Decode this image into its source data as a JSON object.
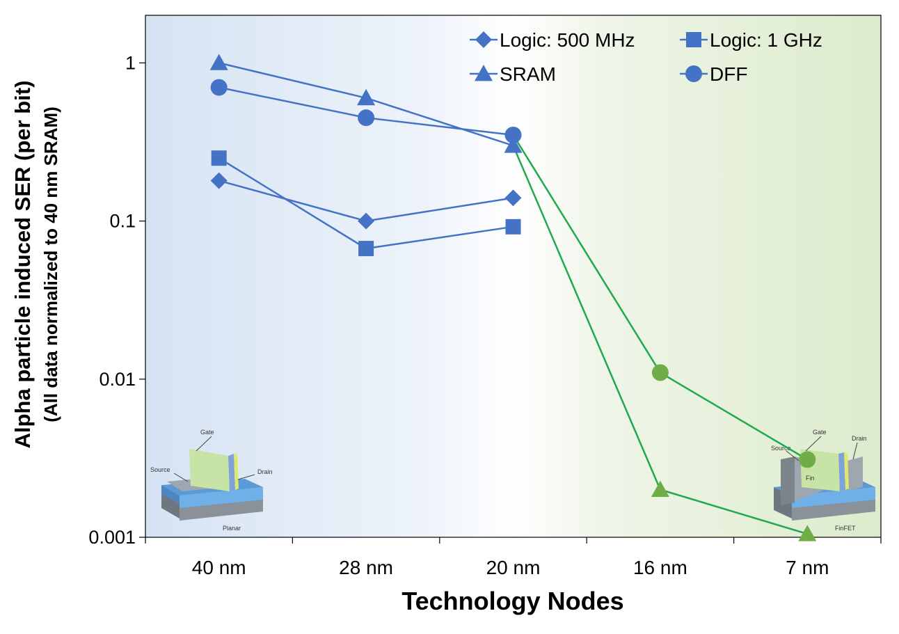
{
  "chart_data": {
    "type": "line",
    "title": "",
    "xlabel": "Technology Nodes",
    "ylabel": "Alpha particle induced SER (per bit)",
    "ylabel_sub": "(All data normalized to 40 nm SRAM)",
    "y_scale": "log",
    "ylim": [
      0.001,
      2
    ],
    "y_ticks": [
      {
        "value": 1,
        "label": "1"
      },
      {
        "value": 0.1,
        "label": "0.1"
      },
      {
        "value": 0.01,
        "label": "0.01"
      },
      {
        "value": 0.001,
        "label": "0.001"
      }
    ],
    "categories": [
      "40 nm",
      "28 nm",
      "20 nm",
      "16 nm",
      "7 nm"
    ],
    "grid": false,
    "legend_position": "top-right",
    "background_regions": [
      "planar",
      "finfet"
    ],
    "series": [
      {
        "name": "Logic: 500 MHz",
        "marker": "diamond",
        "values": [
          0.18,
          0.1,
          0.14,
          null,
          null
        ]
      },
      {
        "name": "Logic: 1 GHz",
        "marker": "square",
        "values": [
          0.25,
          0.067,
          0.092,
          null,
          null
        ]
      },
      {
        "name": "SRAM",
        "marker": "triangle",
        "values": [
          1.0,
          0.6,
          0.3,
          0.002,
          0.00105
        ]
      },
      {
        "name": "DFF",
        "marker": "circle",
        "values": [
          0.7,
          0.45,
          0.35,
          0.011,
          0.0031
        ]
      }
    ],
    "colors": {
      "planar_series": "#4472C4",
      "finfet_series": "#70AD47",
      "finfet_line": "#1FA84E",
      "planar_bg": "#DCE7F4",
      "finfet_bg": "#E3EED8"
    }
  },
  "illustrations": {
    "planar": {
      "gate": "Gate",
      "source": "Source",
      "drain": "Drain",
      "caption": "Planar"
    },
    "finfet": {
      "gate": "Gate",
      "source": "Source",
      "drain": "Drain",
      "fin": "Fin",
      "caption": "FinFET"
    }
  }
}
